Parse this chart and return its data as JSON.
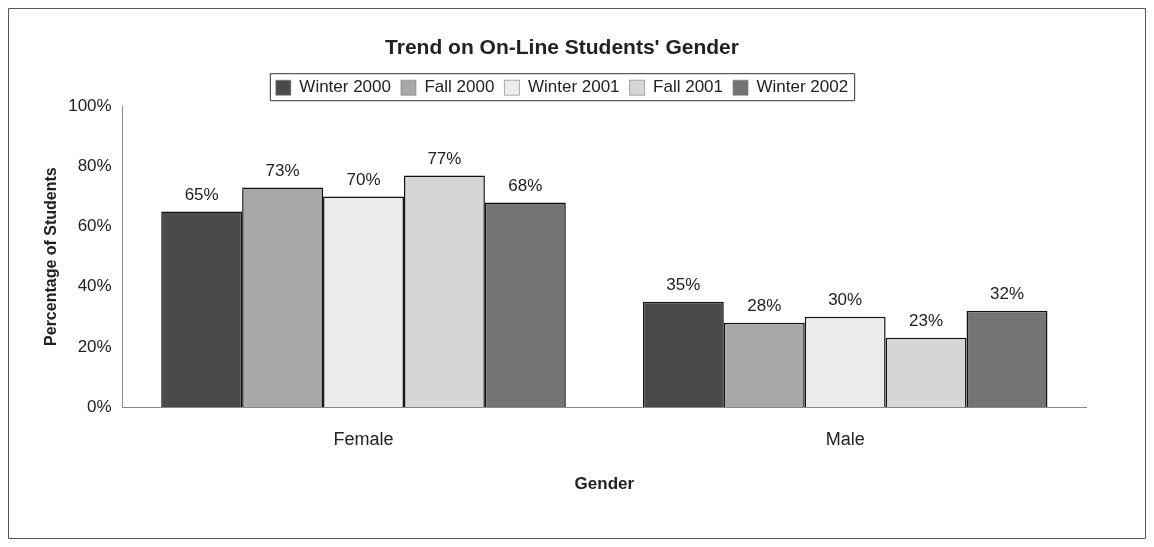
{
  "chart_data": {
    "type": "bar",
    "title": "Trend on On-Line Students' Gender",
    "xlabel": "Gender",
    "ylabel": "Percentage of Students",
    "categories": [
      "Female",
      "Male"
    ],
    "series": [
      {
        "name": "Winter 2000",
        "color": "#4a4a4a",
        "values": [
          65,
          35
        ],
        "value_labels": [
          "65%",
          "35%"
        ]
      },
      {
        "name": "Fall 2000",
        "color": "#a8a8a8",
        "values": [
          73,
          28
        ],
        "value_labels": [
          "73%",
          "28%"
        ]
      },
      {
        "name": "Winter 2001",
        "color": "#ececec",
        "values": [
          70,
          30
        ],
        "value_labels": [
          "70%",
          "30%"
        ]
      },
      {
        "name": "Fall 2001",
        "color": "#d6d6d6",
        "values": [
          77,
          23
        ],
        "value_labels": [
          "77%",
          "23%"
        ]
      },
      {
        "name": "Winter 2002",
        "color": "#747474",
        "values": [
          68,
          32
        ],
        "value_labels": [
          "68%",
          "32%"
        ]
      }
    ],
    "ylim": [
      0,
      100
    ],
    "yticks": [
      {
        "value": 0,
        "label": "0%"
      },
      {
        "value": 20,
        "label": "20%"
      },
      {
        "value": 40,
        "label": "40%"
      },
      {
        "value": 60,
        "label": "60%"
      },
      {
        "value": 80,
        "label": "80%"
      },
      {
        "value": 100,
        "label": "100%"
      }
    ],
    "legend": "top",
    "grid": false
  }
}
